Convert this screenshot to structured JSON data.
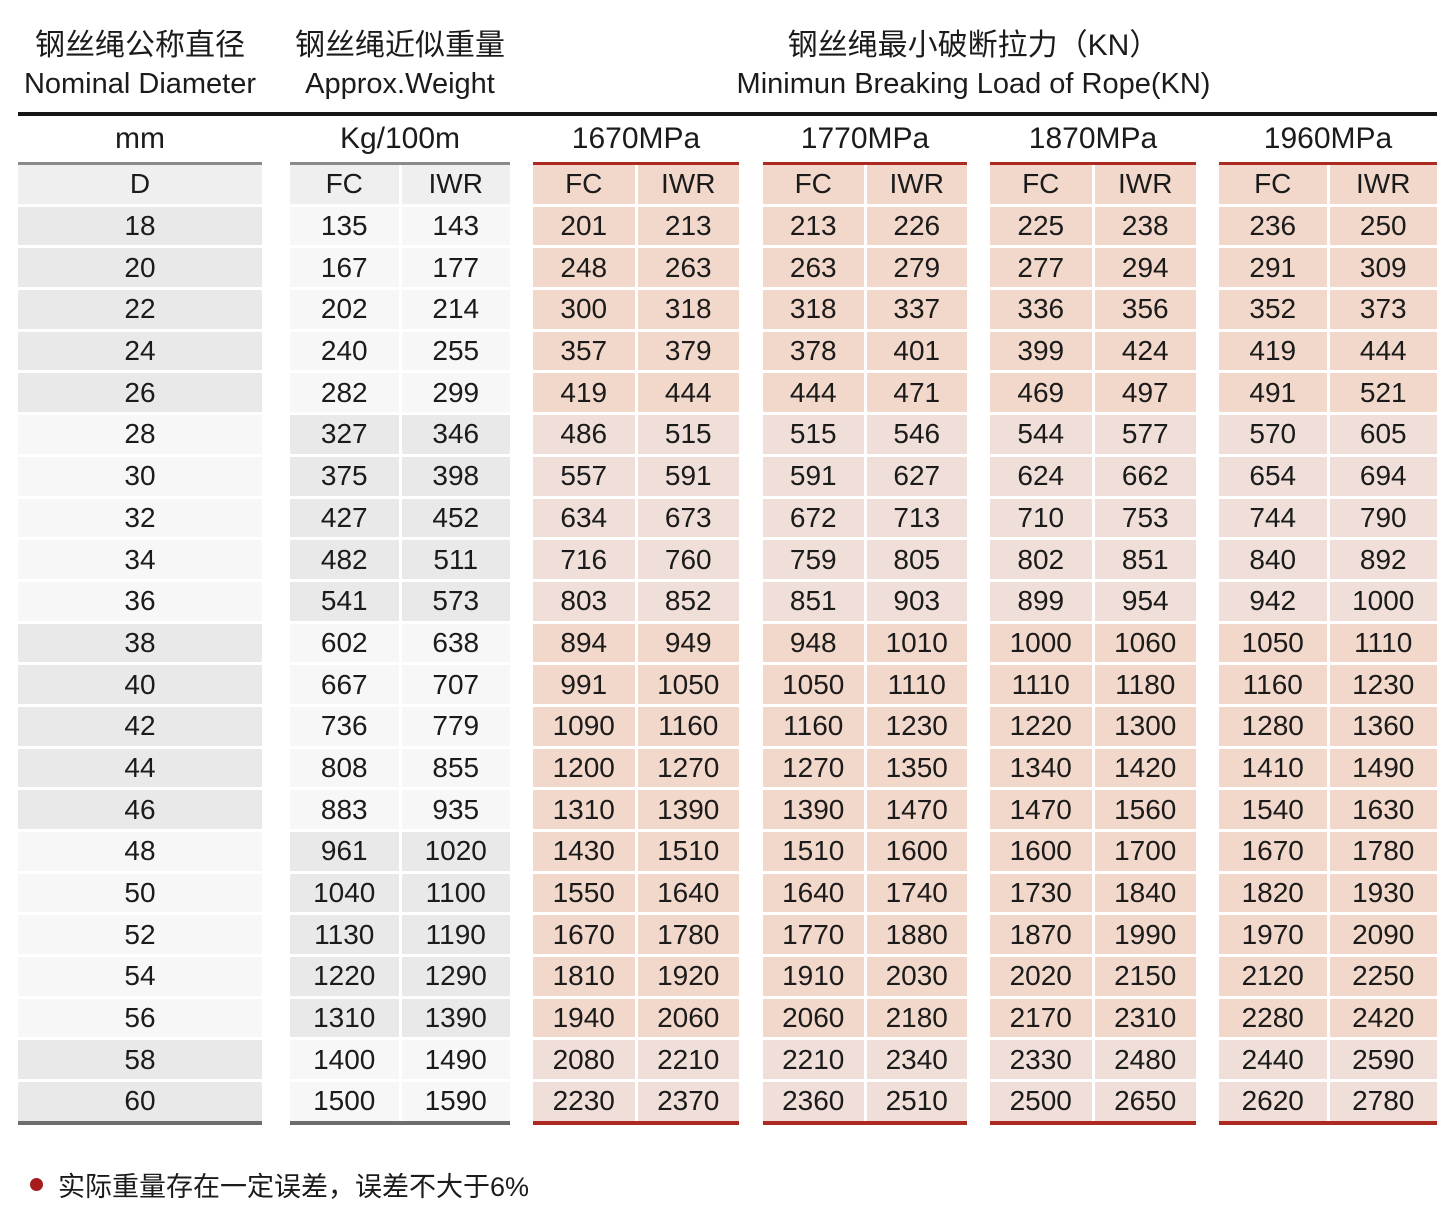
{
  "titles": {
    "diameter_zh": "钢丝绳公称直径",
    "diameter_en": "Nominal Diameter",
    "weight_zh": "钢丝绳近似重量",
    "weight_en": "Approx.Weight",
    "breaking_zh": "钢丝绳最小破断拉力（KN）",
    "breaking_en": "Minimun Breaking Load of Rope(KN)"
  },
  "table": {
    "groups": [
      {
        "label": "mm",
        "sub": [
          "D"
        ]
      },
      {
        "label": "Kg/100m",
        "sub": [
          "FC",
          "IWR"
        ]
      },
      {
        "label": "1670MPa",
        "sub": [
          "FC",
          "IWR"
        ]
      },
      {
        "label": "1770MPa",
        "sub": [
          "FC",
          "IWR"
        ]
      },
      {
        "label": "1870MPa",
        "sub": [
          "FC",
          "IWR"
        ]
      },
      {
        "label": "1960MPa",
        "sub": [
          "FC",
          "IWR"
        ]
      }
    ],
    "rows": [
      [
        "18",
        "135",
        "143",
        "201",
        "213",
        "213",
        "226",
        "225",
        "238",
        "236",
        "250"
      ],
      [
        "20",
        "167",
        "177",
        "248",
        "263",
        "263",
        "279",
        "277",
        "294",
        "291",
        "309"
      ],
      [
        "22",
        "202",
        "214",
        "300",
        "318",
        "318",
        "337",
        "336",
        "356",
        "352",
        "373"
      ],
      [
        "24",
        "240",
        "255",
        "357",
        "379",
        "378",
        "401",
        "399",
        "424",
        "419",
        "444"
      ],
      [
        "26",
        "282",
        "299",
        "419",
        "444",
        "444",
        "471",
        "469",
        "497",
        "491",
        "521"
      ],
      [
        "28",
        "327",
        "346",
        "486",
        "515",
        "515",
        "546",
        "544",
        "577",
        "570",
        "605"
      ],
      [
        "30",
        "375",
        "398",
        "557",
        "591",
        "591",
        "627",
        "624",
        "662",
        "654",
        "694"
      ],
      [
        "32",
        "427",
        "452",
        "634",
        "673",
        "672",
        "713",
        "710",
        "753",
        "744",
        "790"
      ],
      [
        "34",
        "482",
        "511",
        "716",
        "760",
        "759",
        "805",
        "802",
        "851",
        "840",
        "892"
      ],
      [
        "36",
        "541",
        "573",
        "803",
        "852",
        "851",
        "903",
        "899",
        "954",
        "942",
        "1000"
      ],
      [
        "38",
        "602",
        "638",
        "894",
        "949",
        "948",
        "1010",
        "1000",
        "1060",
        "1050",
        "1110"
      ],
      [
        "40",
        "667",
        "707",
        "991",
        "1050",
        "1050",
        "1110",
        "1110",
        "1180",
        "1160",
        "1230"
      ],
      [
        "42",
        "736",
        "779",
        "1090",
        "1160",
        "1160",
        "1230",
        "1220",
        "1300",
        "1280",
        "1360"
      ],
      [
        "44",
        "808",
        "855",
        "1200",
        "1270",
        "1270",
        "1350",
        "1340",
        "1420",
        "1410",
        "1490"
      ],
      [
        "46",
        "883",
        "935",
        "1310",
        "1390",
        "1390",
        "1470",
        "1470",
        "1560",
        "1540",
        "1630"
      ],
      [
        "48",
        "961",
        "1020",
        "1430",
        "1510",
        "1510",
        "1600",
        "1600",
        "1700",
        "1670",
        "1780"
      ],
      [
        "50",
        "1040",
        "1100",
        "1550",
        "1640",
        "1640",
        "1740",
        "1730",
        "1840",
        "1820",
        "1930"
      ],
      [
        "52",
        "1130",
        "1190",
        "1670",
        "1780",
        "1770",
        "1880",
        "1870",
        "1990",
        "1970",
        "2090"
      ],
      [
        "54",
        "1220",
        "1290",
        "1810",
        "1920",
        "1910",
        "2030",
        "2020",
        "2150",
        "2120",
        "2250"
      ],
      [
        "56",
        "1310",
        "1390",
        "1940",
        "2060",
        "2060",
        "2180",
        "2170",
        "2310",
        "2280",
        "2420"
      ],
      [
        "58",
        "1400",
        "1490",
        "2080",
        "2210",
        "2210",
        "2340",
        "2330",
        "2480",
        "2440",
        "2590"
      ],
      [
        "60",
        "1500",
        "1590",
        "2230",
        "2370",
        "2360",
        "2510",
        "2500",
        "2650",
        "2620",
        "2780"
      ]
    ]
  },
  "note": {
    "text": "实际重量存在一定误差，误差不大于6%"
  },
  "colors": {
    "accent_red": "#ad2a23",
    "pink_warm": "#f2d8ca",
    "pink_light": "#efdfd8",
    "gray_cell": "#e9e9e9",
    "light_cell": "#f7f7f7",
    "header_gray": "#efefef",
    "rule_black": "#161616",
    "rule_gray": "#6d6d6d",
    "note_bullet": "#a61c1c"
  }
}
